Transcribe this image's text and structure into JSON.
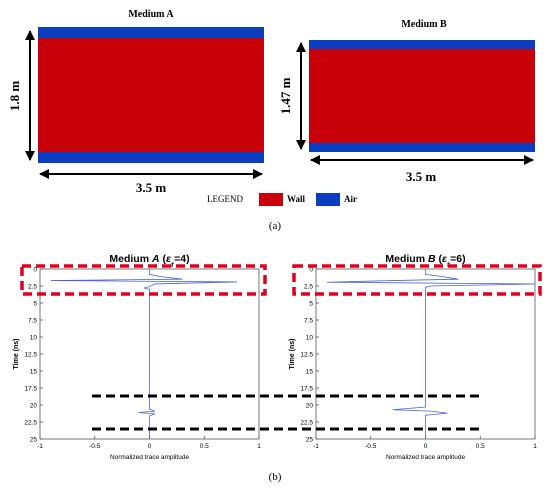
{
  "colors": {
    "wall": "#c8000a",
    "air": "#0a3dbf",
    "trace": "#4a63d6",
    "highlight": "#e0001b",
    "dashed": "#000000"
  },
  "part_a": {
    "medium_a_title": "Medium A",
    "medium_b_title": "Medium B",
    "medium_a_height": "1.8 m",
    "medium_b_height": "1.47 m",
    "medium_a_width": "3.5 m",
    "medium_b_width": "3.5 m",
    "legend_label": "LEGEND",
    "legend_wall": "Wall",
    "legend_air": "Air",
    "caption": "(a)"
  },
  "part_b": {
    "caption": "(b)",
    "chart_data": [
      {
        "type": "line",
        "title": "Medium A (εr=4)",
        "xlabel": "Normalized trace amplitude",
        "ylabel": "Time (ns)",
        "xlim": [
          -1,
          1
        ],
        "ylim": [
          0,
          25
        ],
        "y_inverted": true,
        "x_ticks": [
          "-1",
          "-0.5",
          "0",
          "0.5",
          "1"
        ],
        "y_ticks": [
          "0",
          "2.5",
          "5",
          "7.5",
          "10",
          "12.5",
          "15",
          "17.5",
          "20",
          "22.5",
          "25"
        ],
        "series": [
          {
            "points": [
              [
                0,
                0
              ],
              [
                0,
                0.8
              ],
              [
                0.1,
                1.1
              ],
              [
                0.3,
                1.5
              ],
              [
                -0.9,
                1.7
              ],
              [
                0.8,
                1.9
              ],
              [
                0.05,
                2.2
              ],
              [
                0,
                2.6
              ],
              [
                -0.05,
                2.8
              ],
              [
                0,
                3.0
              ],
              [
                0,
                20.6
              ],
              [
                0.05,
                20.9
              ],
              [
                -0.1,
                21.1
              ],
              [
                0.05,
                21.3
              ],
              [
                0,
                21.6
              ],
              [
                0,
                25
              ]
            ]
          }
        ]
      },
      {
        "type": "line",
        "title": "Medium B (εr=6)",
        "xlabel": "Normalized trace amplitude",
        "ylabel": "Time (ns)",
        "xlim": [
          -1,
          1
        ],
        "ylim": [
          0,
          25
        ],
        "y_inverted": true,
        "x_ticks": [
          "-1",
          "-0.5",
          "0",
          "0.5",
          "1"
        ],
        "y_ticks": [
          "0",
          "2.5",
          "5",
          "7.5",
          "10",
          "12.5",
          "15",
          "17.5",
          "20",
          "22.5",
          "25"
        ],
        "series": [
          {
            "points": [
              [
                0,
                0
              ],
              [
                0,
                0.8
              ],
              [
                0.15,
                1.1
              ],
              [
                0.3,
                1.5
              ],
              [
                -0.3,
                1.7
              ],
              [
                -0.9,
                1.95
              ],
              [
                1.0,
                2.2
              ],
              [
                0.05,
                2.5
              ],
              [
                0,
                2.7
              ],
              [
                0,
                3.0
              ],
              [
                0,
                20.3
              ],
              [
                -0.3,
                20.7
              ],
              [
                0.05,
                20.9
              ],
              [
                0.2,
                21.2
              ],
              [
                0,
                21.5
              ],
              [
                0,
                25
              ]
            ]
          }
        ]
      }
    ]
  }
}
